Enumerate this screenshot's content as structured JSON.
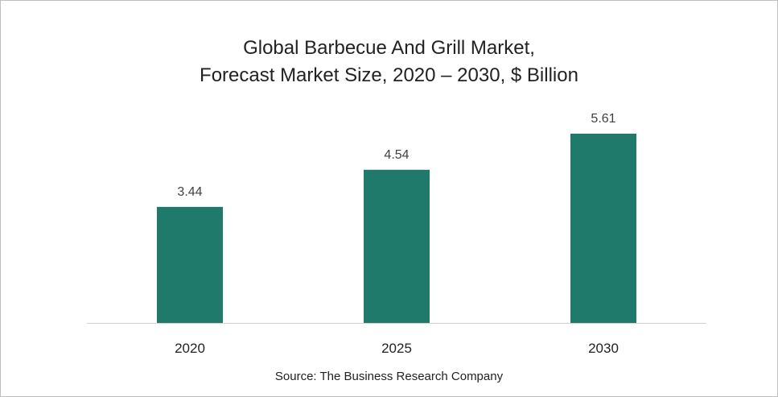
{
  "chart_data": {
    "type": "bar",
    "title_lines": [
      "Global Barbecue And Grill Market,",
      "Forecast Market Size, 2020 – 2030, $ Billion"
    ],
    "categories": [
      "2020",
      "2025",
      "2030"
    ],
    "values": [
      3.44,
      4.54,
      5.61
    ],
    "data_labels": [
      "3.44",
      "4.54",
      "5.61"
    ],
    "ylim": [
      0,
      5.61
    ],
    "bar_color": "#1f7a6c",
    "grid": false,
    "legend": "none"
  },
  "source": "Source: The Business Research Company"
}
